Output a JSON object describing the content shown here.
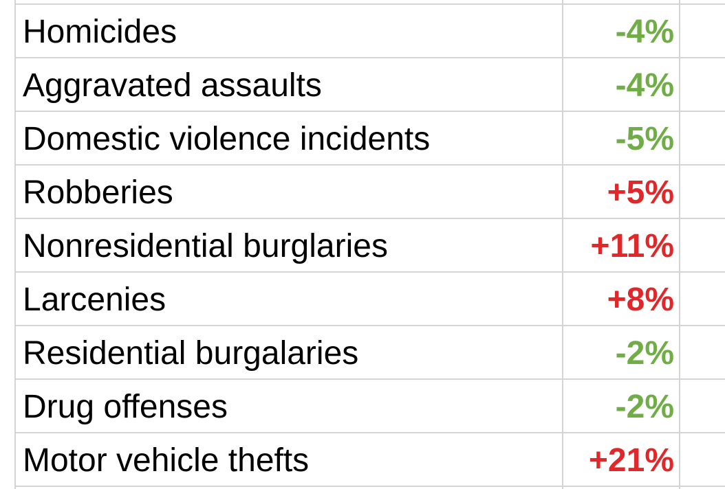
{
  "colors": {
    "decrease": "#70ad47",
    "increase": "#e0282a",
    "gridline": "#d4d4d4"
  },
  "rows": [
    {
      "label": "Homicides",
      "value": "-4%",
      "trend": "decrease"
    },
    {
      "label": "Aggravated assaults",
      "value": "-4%",
      "trend": "decrease"
    },
    {
      "label": "Domestic violence incidents",
      "value": "-5%",
      "trend": "decrease"
    },
    {
      "label": "Robberies",
      "value": "+5%",
      "trend": "increase"
    },
    {
      "label": "Nonresidential burglaries",
      "value": "+11%",
      "trend": "increase"
    },
    {
      "label": "Larcenies",
      "value": "+8%",
      "trend": "increase"
    },
    {
      "label": "Residential burgalaries",
      "value": "-2%",
      "trend": "decrease"
    },
    {
      "label": "Drug offenses",
      "value": "-2%",
      "trend": "decrease"
    },
    {
      "label": "Motor vehicle thefts",
      "value": "+21%",
      "trend": "increase"
    }
  ]
}
